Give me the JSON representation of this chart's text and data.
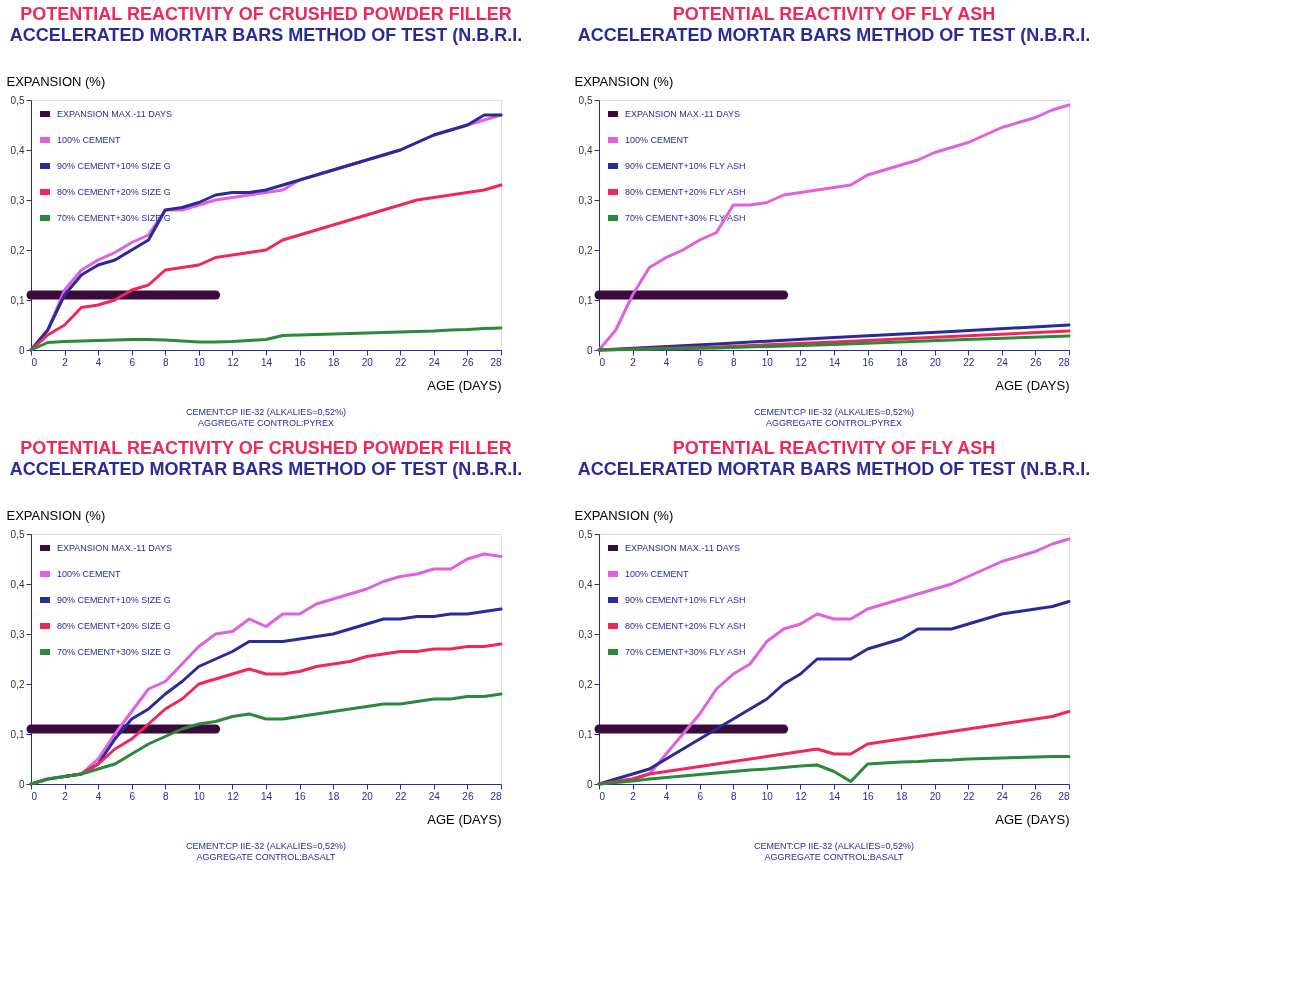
{
  "chart_data": [
    {
      "type": "line",
      "title": "POTENTIAL REACTIVITY OF CRUSHED POWDER FILLER",
      "subtitle": "ACCELERATED MORTAR BARS METHOD OF TEST (N.B.R.I.",
      "xlabel": "AGE (DAYS)",
      "ylabel": "EXPANSION (%)",
      "xlim": [
        0,
        28
      ],
      "ylim": [
        0,
        0.5
      ],
      "xticks": [
        0,
        2,
        4,
        6,
        8,
        10,
        12,
        14,
        16,
        18,
        20,
        22,
        24,
        26,
        28
      ],
      "yticks": [
        0,
        {
          "value": 0.1,
          "label": "0,1"
        },
        {
          "value": 0.2,
          "label": "0,2"
        },
        {
          "value": 0.3,
          "label": "0,3"
        },
        {
          "value": 0.4,
          "label": "0,4"
        },
        {
          "value": 0.5,
          "label": "0,5"
        }
      ],
      "grid": false,
      "legend": "top left",
      "annotations": [
        "CEMENT:CP IIE-32 (ALKALIES=0,52%)",
        "AGGREGATE CONTROL:PYREX"
      ],
      "x": [
        0,
        1,
        2,
        3,
        4,
        5,
        6,
        7,
        8,
        9,
        10,
        11,
        12,
        13,
        14,
        15,
        16,
        17,
        18,
        19,
        20,
        21,
        22,
        23,
        24,
        25,
        26,
        27,
        28
      ],
      "series": [
        {
          "name": "EXPANSION MAX.-11 DAYS",
          "color": "#3a0a3a",
          "x": [
            0,
            11
          ],
          "values": [
            0.11,
            0.11
          ]
        },
        {
          "name": "100% CEMENT",
          "color": "#e060e0",
          "values": [
            0,
            0.04,
            0.12,
            0.16,
            0.18,
            0.195,
            0.215,
            0.23,
            0.28,
            0.28,
            0.29,
            0.3,
            0.305,
            0.31,
            0.315,
            0.32,
            0.34,
            0.35,
            0.36,
            0.37,
            0.38,
            0.39,
            0.4,
            0.415,
            0.43,
            0.44,
            0.45,
            0.46,
            0.47
          ]
        },
        {
          "name": "90% CEMENT+10% SIZE G",
          "color": "#2a2a9a",
          "values": [
            0,
            0.04,
            0.11,
            0.15,
            0.17,
            0.18,
            0.2,
            0.22,
            0.28,
            0.285,
            0.295,
            0.31,
            0.315,
            0.315,
            0.32,
            0.33,
            0.34,
            0.35,
            0.36,
            0.37,
            0.38,
            0.39,
            0.4,
            0.415,
            0.43,
            0.44,
            0.45,
            0.47,
            0.47
          ]
        },
        {
          "name": "80% CEMENT+20% SIZE G",
          "color": "#f0285a",
          "values": [
            0,
            0.03,
            0.05,
            0.085,
            0.09,
            0.1,
            0.12,
            0.13,
            0.16,
            0.165,
            0.17,
            0.185,
            0.19,
            0.195,
            0.2,
            0.22,
            0.23,
            0.24,
            0.25,
            0.26,
            0.27,
            0.28,
            0.29,
            0.3,
            0.305,
            0.31,
            0.315,
            0.32,
            0.33
          ]
        },
        {
          "name": "70% CEMENT+30% SIZE G",
          "color": "#2a8a3a",
          "values": [
            0,
            0.015,
            0.017,
            0.018,
            0.019,
            0.02,
            0.021,
            0.021,
            0.02,
            0.018,
            0.016,
            0.016,
            0.017,
            0.019,
            0.021,
            0.029,
            0.03,
            0.031,
            0.032,
            0.033,
            0.034,
            0.035,
            0.036,
            0.037,
            0.038,
            0.04,
            0.041,
            0.043,
            0.044
          ]
        }
      ]
    },
    {
      "type": "line",
      "title": "POTENTIAL REACTIVITY OF FLY ASH",
      "subtitle": "ACCELERATED MORTAR BARS METHOD OF TEST (N.B.R.I.",
      "xlabel": "AGE (DAYS)",
      "ylabel": "EXPANSION (%)",
      "xlim": [
        0,
        28
      ],
      "ylim": [
        0,
        0.5
      ],
      "xticks": [
        0,
        2,
        4,
        6,
        8,
        10,
        12,
        14,
        16,
        18,
        20,
        22,
        24,
        26,
        28
      ],
      "yticks": [
        0,
        {
          "value": 0.1,
          "label": "0,1"
        },
        {
          "value": 0.2,
          "label": "0,2"
        },
        {
          "value": 0.3,
          "label": "0,3"
        },
        {
          "value": 0.4,
          "label": "0,4"
        },
        {
          "value": 0.5,
          "label": "0,5"
        }
      ],
      "grid": false,
      "legend": "top left",
      "annotations": [
        "CEMENT:CP IIE-32 (ALKALIES=0,52%)",
        "AGGREGATE CONTROL:PYREX"
      ],
      "x": [
        0,
        1,
        2,
        3,
        4,
        5,
        6,
        7,
        8,
        9,
        10,
        11,
        12,
        13,
        14,
        15,
        16,
        17,
        18,
        19,
        20,
        21,
        22,
        23,
        24,
        25,
        26,
        27,
        28
      ],
      "series": [
        {
          "name": "EXPANSION MAX.-11 DAYS",
          "color": "#3a0a3a",
          "x": [
            0,
            11
          ],
          "values": [
            0.11,
            0.11
          ]
        },
        {
          "name": "100% CEMENT",
          "color": "#e060e0",
          "values": [
            0,
            0.04,
            0.11,
            0.165,
            0.185,
            0.2,
            0.22,
            0.235,
            0.29,
            0.29,
            0.295,
            0.31,
            0.315,
            0.32,
            0.325,
            0.33,
            0.35,
            0.36,
            0.37,
            0.38,
            0.395,
            0.405,
            0.415,
            0.43,
            0.445,
            0.455,
            0.465,
            0.48,
            0.49
          ]
        },
        {
          "name": "90% CEMENT+10% FLY ASH",
          "color": "#2a2a9a",
          "x": [
            0,
            7,
            14,
            21,
            28
          ],
          "values": [
            0,
            0.012,
            0.025,
            0.037,
            0.05
          ]
        },
        {
          "name": "80% CEMENT+20% FLY ASH",
          "color": "#f0285a",
          "x": [
            0,
            7,
            14,
            21,
            28
          ],
          "values": [
            0,
            0.006,
            0.016,
            0.027,
            0.038
          ]
        },
        {
          "name": "70% CEMENT+30% FLY ASH",
          "color": "#2a8a3a",
          "x": [
            0,
            7,
            14,
            21,
            28
          ],
          "values": [
            0,
            0.004,
            0.011,
            0.02,
            0.028
          ]
        }
      ]
    },
    {
      "type": "line",
      "title": "POTENTIAL REACTIVITY OF CRUSHED POWDER FILLER",
      "subtitle": "ACCELERATED MORTAR BARS METHOD OF TEST (N.B.R.I.",
      "xlabel": "AGE (DAYS)",
      "ylabel": "EXPANSION (%)",
      "xlim": [
        0,
        28
      ],
      "ylim": [
        0,
        0.5
      ],
      "xticks": [
        0,
        2,
        4,
        6,
        8,
        10,
        12,
        14,
        16,
        18,
        20,
        22,
        24,
        26,
        28
      ],
      "yticks": [
        0,
        {
          "value": 0.1,
          "label": "0,1"
        },
        {
          "value": 0.2,
          "label": "0,2"
        },
        {
          "value": 0.3,
          "label": "0,3"
        },
        {
          "value": 0.4,
          "label": "0,4"
        },
        {
          "value": 0.5,
          "label": "0,5"
        }
      ],
      "grid": false,
      "legend": "top left",
      "annotations": [
        "CEMENT:CP IIE-32 (ALKALIES=0,52%)",
        "AGGREGATE CONTROL:BASALT"
      ],
      "x": [
        0,
        1,
        2,
        3,
        4,
        5,
        6,
        7,
        8,
        9,
        10,
        11,
        12,
        13,
        14,
        15,
        16,
        17,
        18,
        19,
        20,
        21,
        22,
        23,
        24,
        25,
        26,
        27,
        28
      ],
      "series": [
        {
          "name": "EXPANSION MAX.-11 DAYS",
          "color": "#3a0a3a",
          "x": [
            0,
            11
          ],
          "values": [
            0.11,
            0.11
          ]
        },
        {
          "name": "100% CEMENT",
          "color": "#e060e0",
          "values": [
            null,
            null,
            0.015,
            0.02,
            0.05,
            0.1,
            0.145,
            0.19,
            0.205,
            0.24,
            0.275,
            0.3,
            0.305,
            0.33,
            0.315,
            0.34,
            0.34,
            0.36,
            0.37,
            0.38,
            0.39,
            0.405,
            0.415,
            0.42,
            0.43,
            0.43,
            0.45,
            0.46,
            0.455
          ]
        },
        {
          "name": "90% CEMENT+10% SIZE G",
          "color": "#2a2a9a",
          "values": [
            0,
            0.01,
            0.015,
            0.02,
            0.04,
            0.09,
            0.13,
            0.15,
            0.18,
            0.205,
            0.235,
            0.25,
            0.265,
            0.285,
            0.285,
            0.285,
            0.29,
            0.295,
            0.3,
            0.31,
            0.32,
            0.33,
            0.33,
            0.335,
            0.335,
            0.34,
            0.34,
            0.345,
            0.35
          ]
        },
        {
          "name": "80% CEMENT+20% SIZE G",
          "color": "#f0285a",
          "values": [
            null,
            null,
            0.015,
            0.02,
            0.04,
            0.07,
            0.09,
            0.12,
            0.15,
            0.17,
            0.2,
            0.21,
            0.22,
            0.23,
            0.22,
            0.22,
            0.225,
            0.235,
            0.24,
            0.245,
            0.255,
            0.26,
            0.265,
            0.265,
            0.27,
            0.27,
            0.275,
            0.275,
            0.28
          ]
        },
        {
          "name": "70% CEMENT+30% SIZE G",
          "color": "#2a8a3a",
          "values": [
            0,
            0.01,
            0.015,
            0.02,
            0.03,
            0.04,
            0.06,
            0.08,
            0.095,
            0.11,
            0.12,
            0.125,
            0.135,
            0.14,
            0.13,
            0.13,
            0.135,
            0.14,
            0.145,
            0.15,
            0.155,
            0.16,
            0.16,
            0.165,
            0.17,
            0.17,
            0.175,
            0.175,
            0.18
          ]
        }
      ]
    },
    {
      "type": "line",
      "title": "POTENTIAL REACTIVITY OF FLY ASH",
      "subtitle": "ACCELERATED MORTAR BARS METHOD OF TEST (N.B.R.I.",
      "xlabel": "AGE (DAYS)",
      "ylabel": "EXPANSION (%)",
      "xlim": [
        0,
        28
      ],
      "ylim": [
        0,
        0.5
      ],
      "xticks": [
        0,
        2,
        4,
        6,
        8,
        10,
        12,
        14,
        16,
        18,
        20,
        22,
        24,
        26,
        28
      ],
      "yticks": [
        0,
        {
          "value": 0.1,
          "label": "0,1"
        },
        {
          "value": 0.2,
          "label": "0,2"
        },
        {
          "value": 0.3,
          "label": "0,3"
        },
        {
          "value": 0.4,
          "label": "0,4"
        },
        {
          "value": 0.5,
          "label": "0,5"
        }
      ],
      "grid": false,
      "legend": "top left",
      "annotations": [
        "CEMENT:CP IIE-32 (ALKALIES=0,52%)",
        "AGGREGATE CONTROL:BASALT"
      ],
      "x": [
        0,
        1,
        2,
        3,
        4,
        5,
        6,
        7,
        8,
        9,
        10,
        11,
        12,
        13,
        14,
        15,
        16,
        17,
        18,
        19,
        20,
        21,
        22,
        23,
        24,
        25,
        26,
        27,
        28
      ],
      "series": [
        {
          "name": "EXPANSION MAX.-11 DAYS",
          "color": "#3a0a3a",
          "x": [
            0,
            11
          ],
          "values": [
            0.11,
            0.11
          ]
        },
        {
          "name": "100% CEMENT",
          "color": "#e060e0",
          "values": [
            0,
            0.005,
            0.01,
            0.02,
            0.06,
            0.1,
            0.14,
            0.19,
            0.22,
            0.24,
            0.285,
            0.31,
            0.32,
            0.34,
            0.33,
            0.33,
            0.35,
            0.36,
            0.37,
            0.38,
            0.39,
            0.4,
            0.415,
            0.43,
            0.445,
            0.455,
            0.465,
            0.48,
            0.49
          ]
        },
        {
          "name": "90% CEMENT+10% FLY ASH",
          "color": "#2a2a9a",
          "values": [
            0,
            0.01,
            0.02,
            0.03,
            0.05,
            0.07,
            0.09,
            0.11,
            0.13,
            0.15,
            0.17,
            0.2,
            0.22,
            0.25,
            0.25,
            0.25,
            0.27,
            0.28,
            0.29,
            0.31,
            0.31,
            0.31,
            0.32,
            0.33,
            0.34,
            0.345,
            0.35,
            0.355,
            0.365
          ]
        },
        {
          "name": "80% CEMENT+20% FLY ASH",
          "color": "#f0285a",
          "values": [
            0,
            0.005,
            0.01,
            0.02,
            0.025,
            0.03,
            0.035,
            0.04,
            0.045,
            0.05,
            0.055,
            0.06,
            0.065,
            0.07,
            0.06,
            0.06,
            0.08,
            0.085,
            0.09,
            0.095,
            0.1,
            0.105,
            0.11,
            0.115,
            0.12,
            0.125,
            0.13,
            0.135,
            0.145
          ]
        },
        {
          "name": "70% CEMENT+30% FLY ASH",
          "color": "#2a8a3a",
          "values": [
            0,
            0.003,
            0.006,
            0.01,
            0.013,
            0.016,
            0.019,
            0.022,
            0.025,
            0.028,
            0.03,
            0.033,
            0.036,
            0.038,
            0.025,
            0.005,
            0.04,
            0.042,
            0.044,
            0.045,
            0.047,
            0.048,
            0.05,
            0.051,
            0.052,
            0.053,
            0.054,
            0.055,
            0.055
          ]
        }
      ]
    }
  ]
}
